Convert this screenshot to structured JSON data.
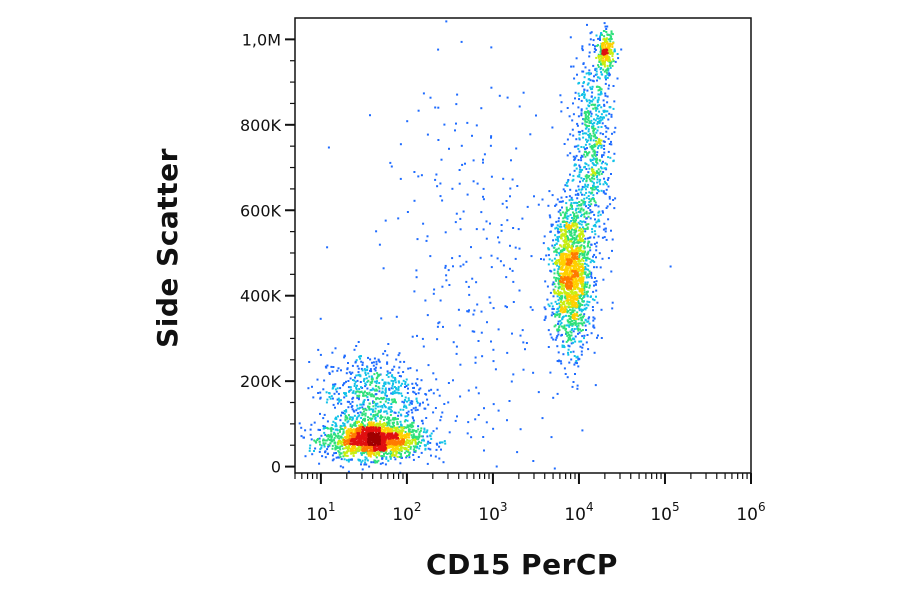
{
  "chart_data": {
    "type": "scatter",
    "title": "",
    "xlabel": "CD15 PerCP",
    "ylabel": "Side Scatter",
    "x_scale": "log",
    "y_scale": "linear",
    "xlim": [
      5,
      1000000
    ],
    "ylim": [
      -15000,
      1050000
    ],
    "x_tick_labels": [
      {
        "base": "10",
        "exp": "1",
        "value": 10
      },
      {
        "base": "10",
        "exp": "2",
        "value": 100
      },
      {
        "base": "10",
        "exp": "3",
        "value": 1000
      },
      {
        "base": "10",
        "exp": "4",
        "value": 10000
      },
      {
        "base": "10",
        "exp": "5",
        "value": 100000
      },
      {
        "base": "10",
        "exp": "6",
        "value": 1000000
      }
    ],
    "y_tick_labels": [
      {
        "label": "0",
        "value": 0
      },
      {
        "label": "200K",
        "value": 200000
      },
      {
        "label": "400K",
        "value": 400000
      },
      {
        "label": "600K",
        "value": 600000
      },
      {
        "label": "800K",
        "value": 800000
      },
      {
        "label": "1,0M",
        "value": 1000000
      }
    ],
    "grid": false,
    "legend": "none",
    "density_colors": [
      "#1a0cb5",
      "#1e6bff",
      "#12c2e8",
      "#2ee07a",
      "#c8ee12",
      "#ffd000",
      "#ff7a00",
      "#e01010",
      "#a00000"
    ],
    "populations": [
      {
        "x_center": 40,
        "y_center": 65000,
        "x_spread_decades": 0.28,
        "y_spread": 22000,
        "relative_count": 0.34
      },
      {
        "x_center": 38,
        "y_center": 170000,
        "x_spread_decades": 0.3,
        "y_spread": 50000,
        "relative_count": 0.12
      },
      {
        "x_center": 8000,
        "y_center": 450000,
        "x_spread_decades": 0.11,
        "y_spread": 85000,
        "relative_count": 0.3
      },
      {
        "x_center": 14000,
        "y_center": 750000,
        "x_spread_decades": 0.12,
        "y_spread": 120000,
        "relative_count": 0.13
      },
      {
        "x_center": 20000,
        "y_center": 970000,
        "x_spread_decades": 0.05,
        "y_spread": 25000,
        "relative_count": 0.05
      },
      {
        "x_center": 800,
        "y_center": 450000,
        "x_spread_decades": 0.6,
        "y_spread": 250000,
        "relative_count": 0.06
      }
    ]
  }
}
